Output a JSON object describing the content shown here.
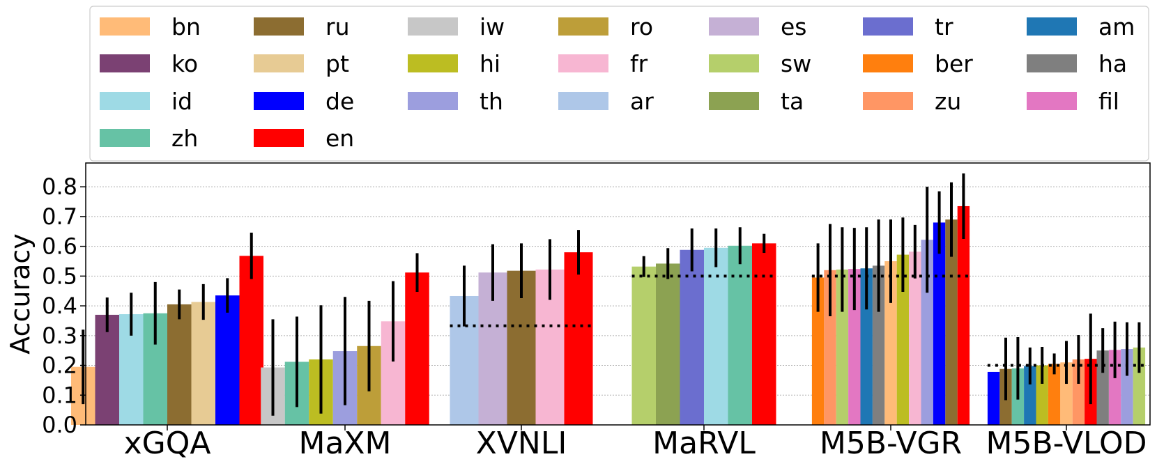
{
  "chart_data": {
    "type": "bar",
    "ylabel": "Accuracy",
    "ylim": [
      0.0,
      0.88
    ],
    "yticks": [
      "0.0",
      "0.1",
      "0.2",
      "0.3",
      "0.4",
      "0.5",
      "0.6",
      "0.7",
      "0.8"
    ],
    "grid": "horizontal dotted",
    "legend_placement": "top",
    "legend": [
      {
        "name": "bn",
        "color": "#ffbb78"
      },
      {
        "name": "ko",
        "color": "#7b4173"
      },
      {
        "name": "id",
        "color": "#9edae5"
      },
      {
        "name": "zh",
        "color": "#66c2a5"
      },
      {
        "name": "ru",
        "color": "#8c6d31"
      },
      {
        "name": "pt",
        "color": "#e7cb94"
      },
      {
        "name": "de",
        "color": "#0000ff"
      },
      {
        "name": "en",
        "color": "#ff0000"
      },
      {
        "name": "iw",
        "color": "#c7c7c7"
      },
      {
        "name": "hi",
        "color": "#bcbd22"
      },
      {
        "name": "th",
        "color": "#9c9ede"
      },
      {
        "name": "ro",
        "color": "#bd9e39"
      },
      {
        "name": "fr",
        "color": "#f7b6d2"
      },
      {
        "name": "ar",
        "color": "#aec7e8"
      },
      {
        "name": "es",
        "color": "#c5b0d5"
      },
      {
        "name": "sw",
        "color": "#b5cf6b"
      },
      {
        "name": "ta",
        "color": "#8ca252"
      },
      {
        "name": "tr",
        "color": "#6b6ecf"
      },
      {
        "name": "ber",
        "color": "#ff7f0e"
      },
      {
        "name": "zu",
        "color": "#ff9664"
      },
      {
        "name": "am",
        "color": "#1f77b4"
      },
      {
        "name": "ha",
        "color": "#7f7f7f"
      },
      {
        "name": "fil",
        "color": "#e377c2"
      }
    ],
    "groups": [
      {
        "name": "xGQA",
        "chance": null,
        "bars": [
          {
            "lang": "bn",
            "value": 0.195,
            "err": 0.125
          },
          {
            "lang": "ko",
            "value": 0.37,
            "err": 0.058
          },
          {
            "lang": "id",
            "value": 0.372,
            "err": 0.072
          },
          {
            "lang": "zh",
            "value": 0.375,
            "err": 0.105
          },
          {
            "lang": "ru",
            "value": 0.405,
            "err": 0.05
          },
          {
            "lang": "pt",
            "value": 0.413,
            "err": 0.06
          },
          {
            "lang": "de",
            "value": 0.435,
            "err": 0.058
          },
          {
            "lang": "en",
            "value": 0.568,
            "err": 0.078
          }
        ]
      },
      {
        "name": "MaXM",
        "chance": null,
        "bars": [
          {
            "lang": "iw",
            "value": 0.193,
            "err": 0.162
          },
          {
            "lang": "zh",
            "value": 0.212,
            "err": 0.152
          },
          {
            "lang": "hi",
            "value": 0.22,
            "err": 0.182
          },
          {
            "lang": "th",
            "value": 0.248,
            "err": 0.182
          },
          {
            "lang": "ro",
            "value": 0.265,
            "err": 0.152
          },
          {
            "lang": "fr",
            "value": 0.348,
            "err": 0.135
          },
          {
            "lang": "en",
            "value": 0.512,
            "err": 0.065
          }
        ]
      },
      {
        "name": "XVNLI",
        "chance": 0.333,
        "bars": [
          {
            "lang": "ar",
            "value": 0.433,
            "err": 0.102
          },
          {
            "lang": "es",
            "value": 0.512,
            "err": 0.095
          },
          {
            "lang": "ru",
            "value": 0.518,
            "err": 0.092
          },
          {
            "lang": "fr",
            "value": 0.522,
            "err": 0.102
          },
          {
            "lang": "en",
            "value": 0.58,
            "err": 0.075
          }
        ]
      },
      {
        "name": "MaRVL",
        "chance": 0.5,
        "bars": [
          {
            "lang": "sw",
            "value": 0.532,
            "err": 0.035
          },
          {
            "lang": "ta",
            "value": 0.542,
            "err": 0.052
          },
          {
            "lang": "tr",
            "value": 0.588,
            "err": 0.072
          },
          {
            "lang": "id",
            "value": 0.595,
            "err": 0.065
          },
          {
            "lang": "zh",
            "value": 0.602,
            "err": 0.062
          },
          {
            "lang": "en",
            "value": 0.61,
            "err": 0.032
          }
        ]
      },
      {
        "name": "M5B-VGR",
        "chance": 0.5,
        "bars": [
          {
            "lang": "ber",
            "value": 0.495,
            "err": 0.115
          },
          {
            "lang": "zu",
            "value": 0.52,
            "err": 0.155
          },
          {
            "lang": "sw",
            "value": 0.522,
            "err": 0.142
          },
          {
            "lang": "fil",
            "value": 0.524,
            "err": 0.138
          },
          {
            "lang": "am",
            "value": 0.526,
            "err": 0.138
          },
          {
            "lang": "ha",
            "value": 0.535,
            "err": 0.155
          },
          {
            "lang": "bn",
            "value": 0.55,
            "err": 0.14
          },
          {
            "lang": "hi",
            "value": 0.572,
            "err": 0.125
          },
          {
            "lang": "fr",
            "value": 0.582,
            "err": 0.09
          },
          {
            "lang": "th",
            "value": 0.622,
            "err": 0.178
          },
          {
            "lang": "de",
            "value": 0.68,
            "err": 0.105
          },
          {
            "lang": "ru",
            "value": 0.69,
            "err": 0.125
          },
          {
            "lang": "en",
            "value": 0.735,
            "err": 0.11
          }
        ]
      },
      {
        "name": "M5B-VLOD",
        "chance": 0.2,
        "bars": [
          {
            "lang": "de",
            "value": 0.178,
            "err": 0.0
          },
          {
            "lang": "ru",
            "value": 0.188,
            "err": 0.105
          },
          {
            "lang": "zh",
            "value": 0.19,
            "err": 0.105
          },
          {
            "lang": "am",
            "value": 0.198,
            "err": 0.062
          },
          {
            "lang": "hi",
            "value": 0.2,
            "err": 0.062
          },
          {
            "lang": "ber",
            "value": 0.205,
            "err": 0.035
          },
          {
            "lang": "bn",
            "value": 0.21,
            "err": 0.072
          },
          {
            "lang": "zu",
            "value": 0.22,
            "err": 0.082
          },
          {
            "lang": "en",
            "value": 0.222,
            "err": 0.152
          },
          {
            "lang": "ha",
            "value": 0.25,
            "err": 0.075
          },
          {
            "lang": "fil",
            "value": 0.252,
            "err": 0.095
          },
          {
            "lang": "th",
            "value": 0.255,
            "err": 0.09
          },
          {
            "lang": "sw",
            "value": 0.26,
            "err": 0.085
          }
        ]
      }
    ]
  }
}
